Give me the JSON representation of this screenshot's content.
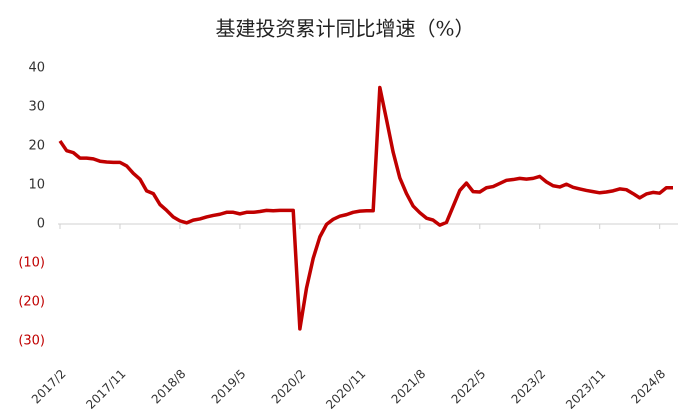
{
  "chart_data": {
    "type": "line",
    "title": "基建投资累计同比增速（%）",
    "categories": [
      "2017/2",
      null,
      null,
      null,
      null,
      null,
      null,
      null,
      null,
      "2017/11",
      null,
      null,
      null,
      null,
      null,
      null,
      null,
      null,
      "2018/8",
      null,
      null,
      null,
      null,
      null,
      null,
      null,
      null,
      "2019/5",
      null,
      null,
      null,
      null,
      null,
      null,
      null,
      null,
      "2020/2",
      null,
      null,
      null,
      null,
      null,
      null,
      null,
      null,
      "2020/11",
      null,
      null,
      null,
      null,
      null,
      null,
      null,
      null,
      "2021/8",
      null,
      null,
      null,
      null,
      null,
      null,
      null,
      null,
      "2022/5",
      null,
      null,
      null,
      null,
      null,
      null,
      null,
      null,
      "2023/2",
      null,
      null,
      null,
      null,
      null,
      null,
      null,
      null,
      "2023/11",
      null,
      null,
      null,
      null,
      null,
      null,
      null,
      null,
      "2024/8",
      null,
      null
    ],
    "values": [
      21.3,
      18.8,
      18.3,
      16.9,
      16.9,
      16.7,
      16.1,
      15.9,
      15.8,
      15.8,
      14.9,
      13.0,
      11.5,
      8.5,
      7.8,
      5.0,
      3.5,
      1.8,
      0.8,
      0.3,
      1.0,
      1.3,
      1.8,
      2.2,
      2.5,
      3.0,
      3.0,
      2.6,
      3.0,
      3.0,
      3.2,
      3.5,
      3.4,
      3.5,
      3.5,
      3.5,
      -26.9,
      -16.4,
      -8.8,
      -3.3,
      -0.1,
      1.2,
      2.0,
      2.4,
      3.0,
      3.3,
      3.4,
      3.4,
      35.0,
      26.8,
      18.4,
      11.8,
      7.8,
      4.6,
      2.9,
      1.5,
      1.0,
      -0.3,
      0.4,
      4.5,
      8.6,
      10.5,
      8.3,
      8.2,
      9.3,
      9.6,
      10.4,
      11.2,
      11.4,
      11.7,
      11.5,
      11.7,
      12.2,
      10.8,
      9.8,
      9.5,
      10.2,
      9.4,
      9.0,
      8.6,
      8.3,
      8.0,
      8.2,
      8.5,
      9.0,
      8.8,
      7.8,
      6.7,
      7.7,
      8.1,
      7.9,
      9.3,
      9.3
    ],
    "color": "#c00000",
    "ylim": [
      -30,
      40
    ],
    "yticks": [
      40,
      30,
      20,
      10,
      0,
      {
        "value": -10,
        "label": "(10)"
      },
      {
        "value": -20,
        "label": "(20)"
      },
      {
        "value": -30,
        "label": "(30)"
      }
    ],
    "negative_tick_color": "#c00000",
    "grid": false
  }
}
